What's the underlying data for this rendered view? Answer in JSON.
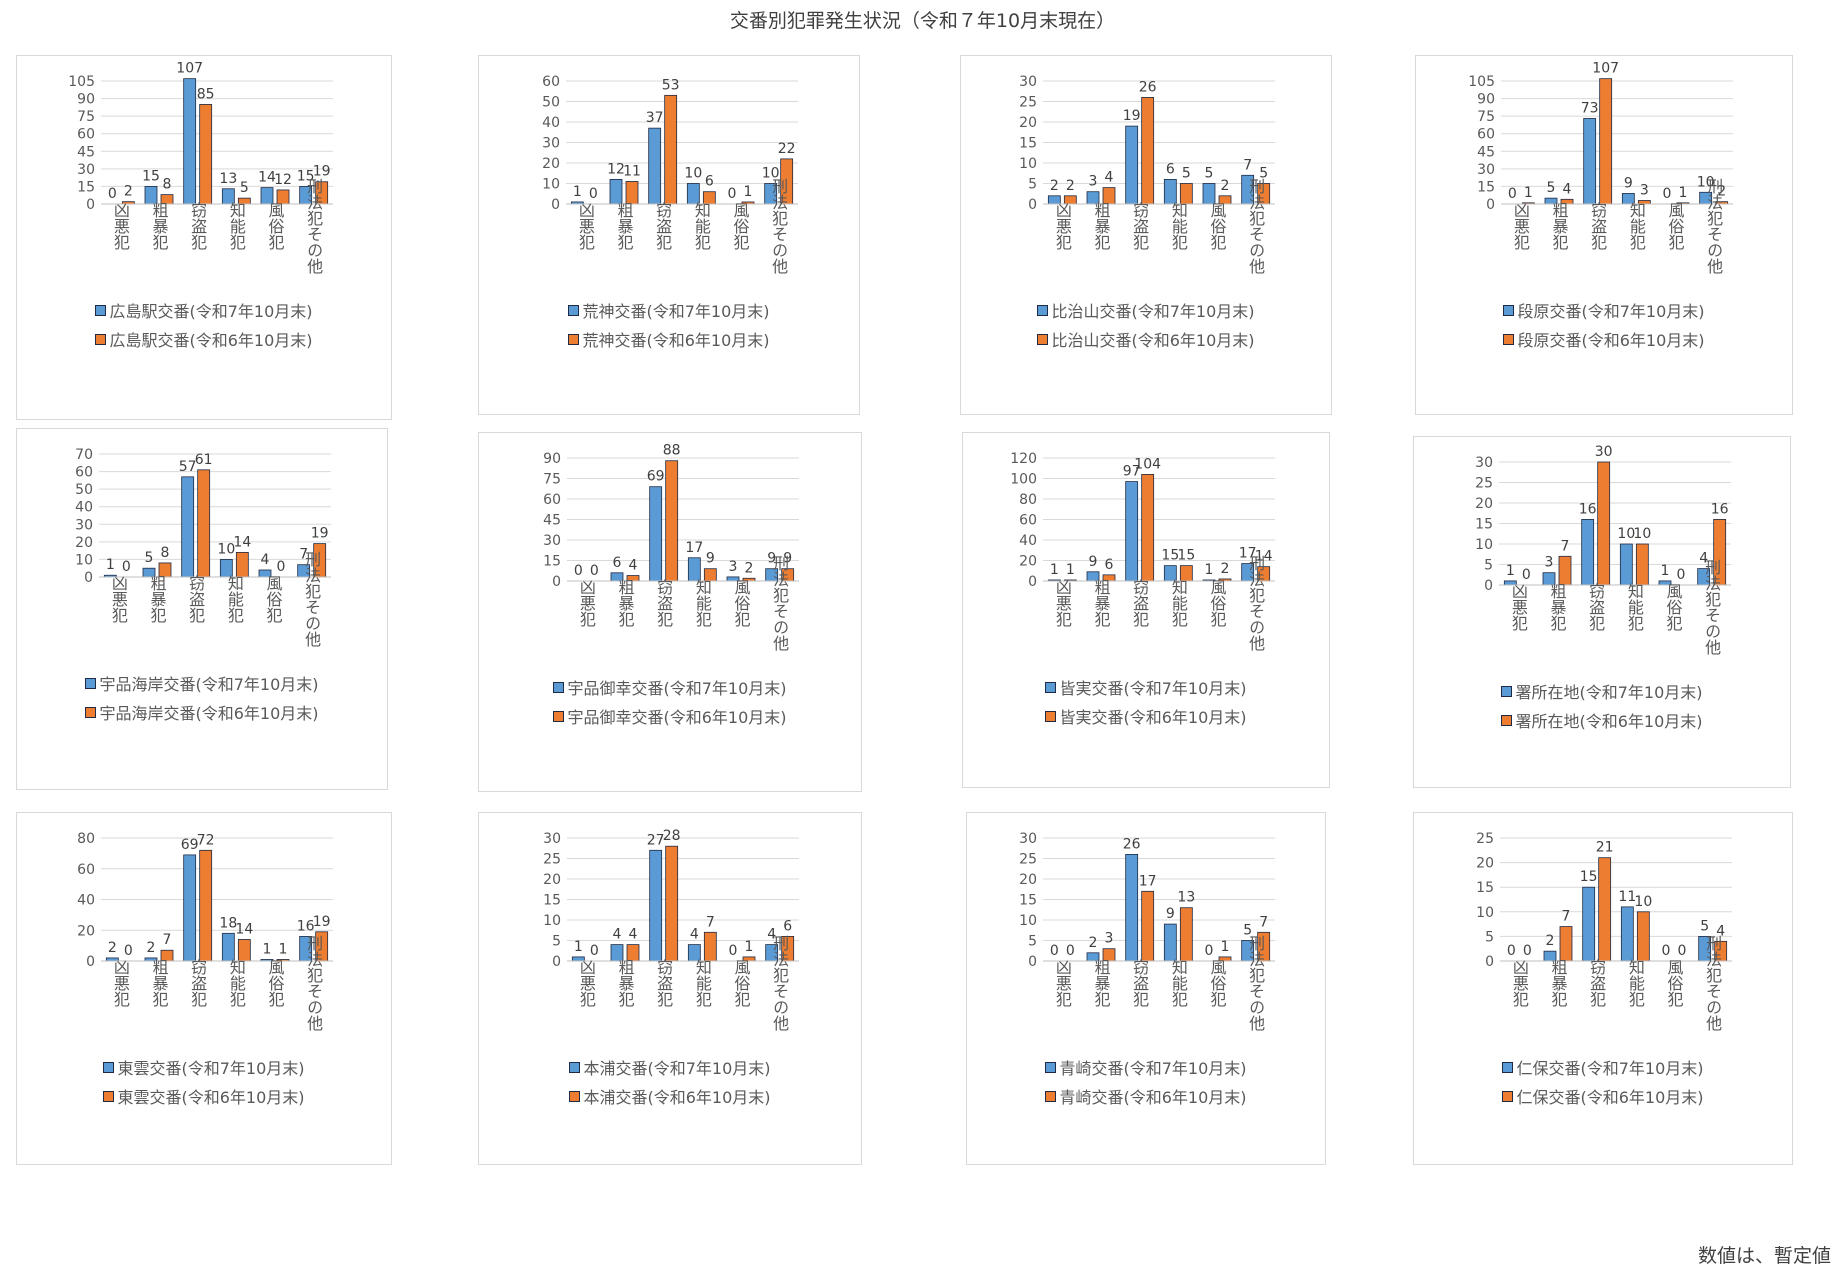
{
  "page": {
    "title": "交番別犯罪発生状況（令和７年10月末現在）",
    "footnote": "数値は、暫定値"
  },
  "colors": {
    "series_2025": "#5b9bd5",
    "series_2024": "#ed7d31",
    "grid": "#d9d9d9"
  },
  "chart_data": [
    {
      "type": "bar",
      "title": "広島駅交番",
      "categories": [
        "凶悪犯",
        "粗暴犯",
        "窃盗犯",
        "知能犯",
        "風俗犯",
        "刑法犯その他"
      ],
      "yticks": [
        0,
        15,
        30,
        45,
        60,
        75,
        90,
        105
      ],
      "ylim": [
        0,
        105
      ],
      "series": [
        {
          "name": "広島駅交番(令和7年10月末)",
          "values": [
            0,
            15,
            107,
            13,
            14,
            15
          ]
        },
        {
          "name": "広島駅交番(令和6年10月末)",
          "values": [
            2,
            8,
            85,
            5,
            12,
            19
          ]
        }
      ]
    },
    {
      "type": "bar",
      "title": "荒神交番",
      "categories": [
        "凶悪犯",
        "粗暴犯",
        "窃盗犯",
        "知能犯",
        "風俗犯",
        "刑法犯その他"
      ],
      "yticks": [
        0,
        10,
        20,
        30,
        40,
        50,
        60
      ],
      "ylim": [
        0,
        60
      ],
      "series": [
        {
          "name": "荒神交番(令和7年10月末)",
          "values": [
            1,
            12,
            37,
            10,
            0,
            10
          ]
        },
        {
          "name": "荒神交番(令和6年10月末)",
          "values": [
            0,
            11,
            53,
            6,
            1,
            22
          ]
        }
      ]
    },
    {
      "type": "bar",
      "title": "比治山交番",
      "categories": [
        "凶悪犯",
        "粗暴犯",
        "窃盗犯",
        "知能犯",
        "風俗犯",
        "刑法犯その他"
      ],
      "yticks": [
        0,
        5,
        10,
        15,
        20,
        25,
        30
      ],
      "ylim": [
        0,
        30
      ],
      "series": [
        {
          "name": "比治山交番(令和7年10月末)",
          "values": [
            2,
            3,
            19,
            6,
            5,
            7
          ]
        },
        {
          "name": "比治山交番(令和6年10月末)",
          "values": [
            2,
            4,
            26,
            5,
            2,
            5
          ]
        }
      ]
    },
    {
      "type": "bar",
      "title": "段原交番",
      "categories": [
        "凶悪犯",
        "粗暴犯",
        "窃盗犯",
        "知能犯",
        "風俗犯",
        "刑法犯その他"
      ],
      "yticks": [
        0,
        15,
        30,
        45,
        60,
        75,
        90,
        105
      ],
      "ylim": [
        0,
        105
      ],
      "series": [
        {
          "name": "段原交番(令和7年10月末)",
          "values": [
            0,
            5,
            73,
            9,
            0,
            10
          ]
        },
        {
          "name": "段原交番(令和6年10月末)",
          "values": [
            1,
            4,
            107,
            3,
            1,
            2
          ]
        }
      ]
    },
    {
      "type": "bar",
      "title": "宇品海岸交番",
      "categories": [
        "凶悪犯",
        "粗暴犯",
        "窃盗犯",
        "知能犯",
        "風俗犯",
        "刑法犯その他"
      ],
      "yticks": [
        0,
        10,
        20,
        30,
        40,
        50,
        60,
        70
      ],
      "ylim": [
        0,
        70
      ],
      "series": [
        {
          "name": "宇品海岸交番(令和7年10月末)",
          "values": [
            1,
            5,
            57,
            10,
            4,
            7
          ]
        },
        {
          "name": "宇品海岸交番(令和6年10月末)",
          "values": [
            0,
            8,
            61,
            14,
            0,
            19
          ]
        }
      ]
    },
    {
      "type": "bar",
      "title": "宇品御幸交番",
      "categories": [
        "凶悪犯",
        "粗暴犯",
        "窃盗犯",
        "知能犯",
        "風俗犯",
        "刑法犯その他"
      ],
      "yticks": [
        0,
        15,
        30,
        45,
        60,
        75,
        90
      ],
      "ylim": [
        0,
        90
      ],
      "series": [
        {
          "name": "宇品御幸交番(令和7年10月末)",
          "values": [
            0,
            6,
            69,
            17,
            3,
            9
          ]
        },
        {
          "name": "宇品御幸交番(令和6年10月末)",
          "values": [
            0,
            4,
            88,
            9,
            2,
            9
          ]
        }
      ]
    },
    {
      "type": "bar",
      "title": "皆実交番",
      "categories": [
        "凶悪犯",
        "粗暴犯",
        "窃盗犯",
        "知能犯",
        "風俗犯",
        "刑法犯その他"
      ],
      "yticks": [
        0,
        20,
        40,
        60,
        80,
        100,
        120
      ],
      "ylim": [
        0,
        120
      ],
      "series": [
        {
          "name": "皆実交番(令和7年10月末)",
          "values": [
            1,
            9,
            97,
            15,
            1,
            17
          ]
        },
        {
          "name": "皆実交番(令和6年10月末)",
          "values": [
            1,
            6,
            104,
            15,
            2,
            14
          ]
        }
      ]
    },
    {
      "type": "bar",
      "title": "署所在地",
      "categories": [
        "凶悪犯",
        "粗暴犯",
        "窃盗犯",
        "知能犯",
        "風俗犯",
        "刑法犯その他"
      ],
      "yticks": [
        0,
        5,
        10,
        15,
        20,
        25,
        30
      ],
      "ylim": [
        0,
        30
      ],
      "series": [
        {
          "name": "署所在地(令和7年10月末)",
          "values": [
            1,
            3,
            16,
            10,
            1,
            4
          ]
        },
        {
          "name": "署所在地(令和6年10月末)",
          "values": [
            0,
            7,
            30,
            10,
            0,
            16
          ]
        }
      ]
    },
    {
      "type": "bar",
      "title": "東雲交番",
      "categories": [
        "凶悪犯",
        "粗暴犯",
        "窃盗犯",
        "知能犯",
        "風俗犯",
        "刑法犯その他"
      ],
      "yticks": [
        0,
        20,
        40,
        60,
        80
      ],
      "ylim": [
        0,
        80
      ],
      "series": [
        {
          "name": "東雲交番(令和7年10月末)",
          "values": [
            2,
            2,
            69,
            18,
            1,
            16
          ]
        },
        {
          "name": "東雲交番(令和6年10月末)",
          "values": [
            0,
            7,
            72,
            14,
            1,
            19
          ]
        }
      ]
    },
    {
      "type": "bar",
      "title": "本浦交番",
      "categories": [
        "凶悪犯",
        "粗暴犯",
        "窃盗犯",
        "知能犯",
        "風俗犯",
        "刑法犯その他"
      ],
      "yticks": [
        0,
        5,
        10,
        15,
        20,
        25,
        30
      ],
      "ylim": [
        0,
        30
      ],
      "series": [
        {
          "name": "本浦交番(令和7年10月末)",
          "values": [
            1,
            4,
            27,
            4,
            0,
            4
          ]
        },
        {
          "name": "本浦交番(令和6年10月末)",
          "values": [
            0,
            4,
            28,
            7,
            1,
            6
          ]
        }
      ]
    },
    {
      "type": "bar",
      "title": "青崎交番",
      "categories": [
        "凶悪犯",
        "粗暴犯",
        "窃盗犯",
        "知能犯",
        "風俗犯",
        "刑法犯その他"
      ],
      "yticks": [
        0,
        5,
        10,
        15,
        20,
        25,
        30
      ],
      "ylim": [
        0,
        30
      ],
      "series": [
        {
          "name": "青崎交番(令和7年10月末)",
          "values": [
            0,
            2,
            26,
            9,
            0,
            5
          ]
        },
        {
          "name": "青崎交番(令和6年10月末)",
          "values": [
            0,
            3,
            17,
            13,
            1,
            7
          ]
        }
      ]
    },
    {
      "type": "bar",
      "title": "仁保交番",
      "categories": [
        "凶悪犯",
        "粗暴犯",
        "窃盗犯",
        "知能犯",
        "風俗犯",
        "刑法犯その他"
      ],
      "yticks": [
        0,
        5,
        10,
        15,
        20,
        25
      ],
      "ylim": [
        0,
        25
      ],
      "series": [
        {
          "name": "仁保交番(令和7年10月末)",
          "values": [
            0,
            2,
            15,
            11,
            0,
            5
          ]
        },
        {
          "name": "仁保交番(令和6年10月末)",
          "values": [
            0,
            7,
            21,
            10,
            0,
            4
          ]
        }
      ]
    }
  ]
}
